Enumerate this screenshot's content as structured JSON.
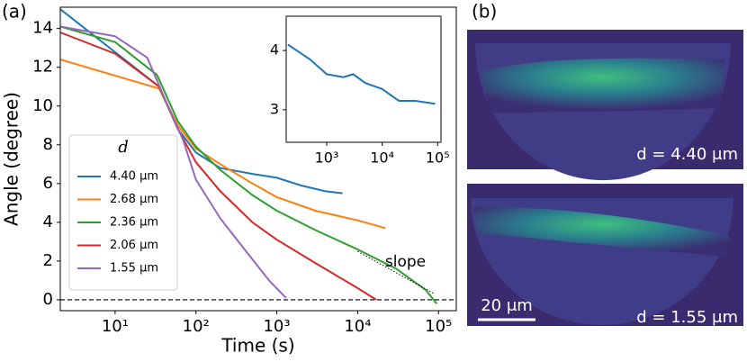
{
  "chart_data": [
    {
      "type": "line",
      "xscale": "log",
      "xlabel": "Time (s)",
      "ylabel": "Angle (degree)",
      "xlim": [
        2.1,
        166000
      ],
      "ylim": [
        -0.56,
        15.1
      ],
      "xticks": [
        {
          "value": 10,
          "label": "10¹"
        },
        {
          "value": 100,
          "label": "10²"
        },
        {
          "value": 1000,
          "label": "10³"
        },
        {
          "value": 10000,
          "label": "10⁴"
        },
        {
          "value": 100000,
          "label": "10⁵"
        }
      ],
      "yticks": [
        0,
        2,
        4,
        6,
        8,
        10,
        12,
        14
      ],
      "hline": 0,
      "legend_title": "d",
      "series": [
        {
          "name": "4.40 μm",
          "color": "#1f77b4",
          "x": [
            2.1,
            35,
            60,
            100,
            200,
            500,
            1000,
            2000,
            4000,
            6500
          ],
          "values": [
            15,
            11,
            8.8,
            7.6,
            6.8,
            6.5,
            6.3,
            5.9,
            5.6,
            5.5
          ]
        },
        {
          "name": "2.68 μm",
          "color": "#ff7f0e",
          "x": [
            2.1,
            35,
            60,
            100,
            200,
            500,
            1000,
            3000,
            10000,
            22000
          ],
          "values": [
            12.4,
            10.9,
            9,
            7.8,
            7,
            6,
            5.3,
            4.6,
            4.1,
            3.7
          ]
        },
        {
          "name": "2.36 μm",
          "color": "#2ca02c",
          "x": [
            2.1,
            10,
            33,
            60,
            100,
            200,
            500,
            1000,
            3000,
            10000,
            30000,
            70000,
            95000
          ],
          "values": [
            14.1,
            13.3,
            11.6,
            9.2,
            7.9,
            6.7,
            5.4,
            4.6,
            3.6,
            2.6,
            1.6,
            0.5,
            -0.2
          ]
        },
        {
          "name": "2.06 μm",
          "color": "#d62728",
          "x": [
            2.1,
            10,
            35,
            60,
            100,
            200,
            500,
            1000,
            3000,
            10000,
            17000
          ],
          "values": [
            13.8,
            12.7,
            11,
            8.8,
            7.1,
            5.6,
            4,
            3.1,
            1.9,
            0.6,
            0
          ]
        },
        {
          "name": "1.55 μm",
          "color": "#9467bd",
          "x": [
            2.1,
            10,
            25,
            40,
            70,
            100,
            200,
            400,
            800,
            1300
          ],
          "values": [
            14.1,
            13.6,
            12.5,
            10.5,
            8.2,
            6.2,
            4.2,
            2.6,
            1,
            0.1
          ]
        }
      ],
      "annotations": [
        {
          "text": "slope",
          "x": [
            10000,
            90000
          ],
          "y": [
            2.5,
            0.3
          ]
        }
      ]
    },
    {
      "type": "line",
      "xscale": "log",
      "xlim": [
        186,
        115000
      ],
      "ylim": [
        2.45,
        4.58
      ],
      "xticks": [
        {
          "value": 1000,
          "label": "10³"
        },
        {
          "value": 10000,
          "label": "10⁴"
        },
        {
          "value": 100000,
          "label": "10⁵"
        }
      ],
      "yticks": [
        3,
        4
      ],
      "series": [
        {
          "color": "#1f77b4",
          "x": [
            200,
            500,
            1000,
            2000,
            3000,
            5000,
            10000,
            20000,
            40000,
            90000
          ],
          "values": [
            4.1,
            3.85,
            3.6,
            3.55,
            3.6,
            3.45,
            3.35,
            3.15,
            3.15,
            3.1
          ]
        }
      ]
    }
  ],
  "panels": {
    "a_label": "(a)",
    "b_label": "(b)",
    "images": [
      {
        "label": "d = 4.40 μm"
      },
      {
        "label": "d = 1.55 μm"
      }
    ],
    "scale_bar": "20 μm"
  }
}
